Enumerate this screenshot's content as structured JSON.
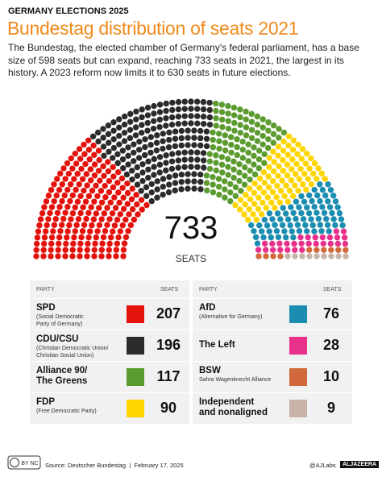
{
  "header": {
    "kicker": "GERMANY ELECTIONS 2025",
    "title": "Bundestag distribution of seats 2021",
    "description": "The Bundestag, the elected chamber of Germany's federal parliament, has a base size of 598 seats but can expand, reaching 733 seats in 2021, the largest in its history. A 2023 reform now limits it to 630 seats in future elections."
  },
  "chart_data": {
    "type": "parliament",
    "total": 733,
    "total_label": "SEATS",
    "column_headers": [
      "PARTY",
      "SEATS"
    ],
    "parties": [
      {
        "name": "SPD",
        "note": "(Social Democratic\nParty of Germany)",
        "color": "#e3120b",
        "seats": 207
      },
      {
        "name": "CDU/CSU",
        "note": "(Christian Democratic Union/\nChristian Social Union)",
        "color": "#2b2b2b",
        "seats": 196
      },
      {
        "name": "Alliance 90/\nThe Greens",
        "color": "#5b9b2f",
        "seats": 117
      },
      {
        "name": "FDP",
        "note": "(Free Democratic Party)",
        "color": "#ffd500",
        "seats": 90
      },
      {
        "name": "AfD",
        "note": "(Alternative for Germany)",
        "color": "#1b8db0",
        "seats": 76
      },
      {
        "name": "The Left",
        "color": "#e8318a",
        "seats": 28
      },
      {
        "name": "BSW",
        "note": "Sahra Wagenknecht Alliance",
        "color": "#d2693c",
        "seats": 10
      },
      {
        "name": "Independent\nand nonaligned",
        "color": "#c9b3a8",
        "seats": 9
      }
    ]
  },
  "footer": {
    "source": "Source: Deutscher Bundestag  |  February 17, 2025",
    "handle": "@AJLabs",
    "brand": "ALJAZEERA"
  }
}
